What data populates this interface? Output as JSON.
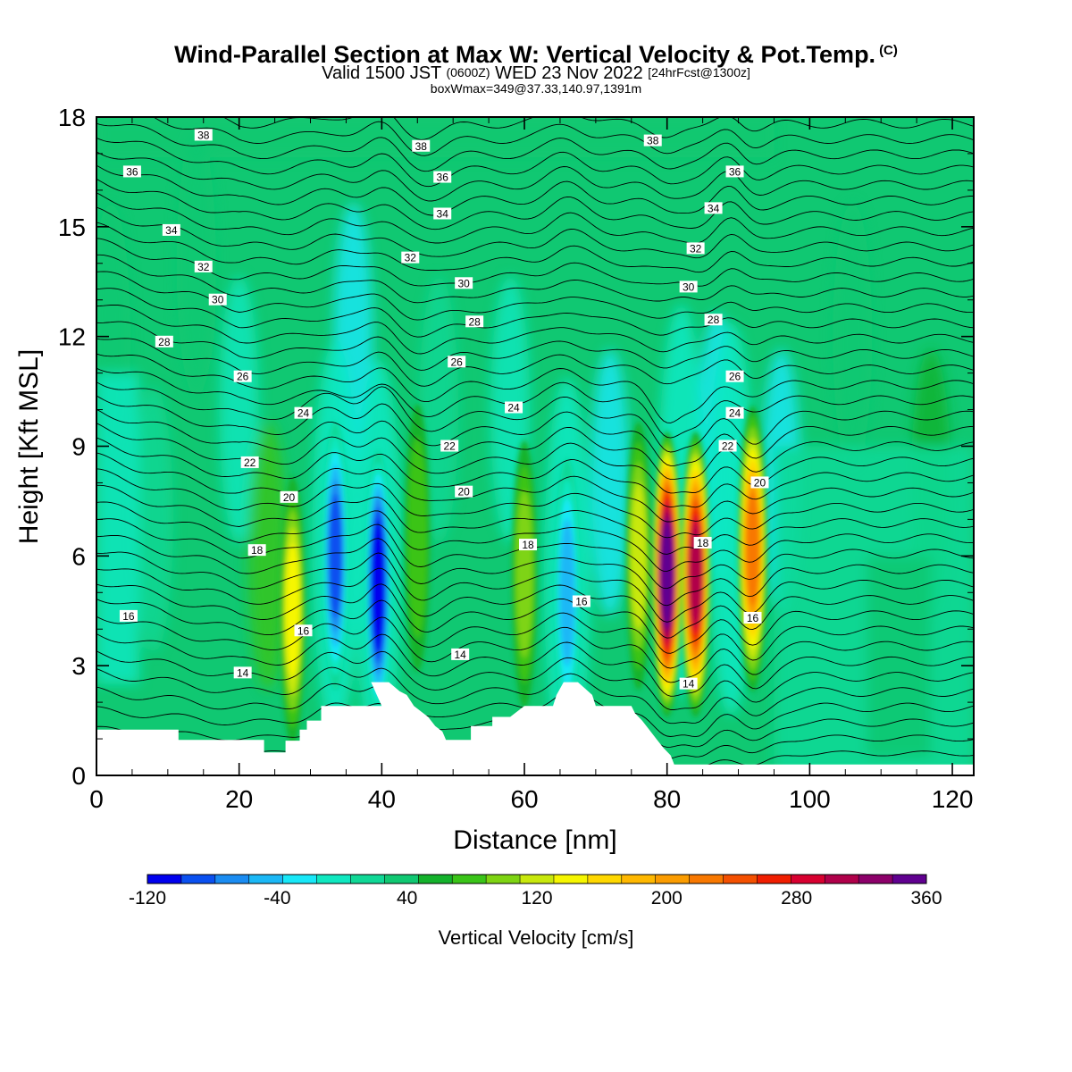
{
  "header": {
    "title": "Wind-Parallel Section at Max W: Vertical Velocity & Pot.Temp.",
    "copyright": "(C)",
    "valid_prefix": "Valid 1500 JST",
    "valid_utc": "(0600Z)",
    "valid_date": "WED 23 Nov 2022",
    "forecast": "[24hrFcst@1300z]",
    "box_info": "boxWmax=349@37.33,140.97,1391m"
  },
  "chart_data": {
    "type": "heatmap",
    "title": "Wind-Parallel Section at Max W: Vertical Velocity & Pot.Temp.",
    "xlabel": "Distance [nm]",
    "ylabel": "Height [Kft MSL]",
    "xlim": [
      0,
      123
    ],
    "ylim": [
      0,
      18
    ],
    "x_ticks": [
      0,
      20,
      40,
      60,
      80,
      100,
      120
    ],
    "y_ticks": [
      0,
      3,
      6,
      9,
      12,
      15,
      18
    ],
    "colorbar": {
      "title": "Vertical Velocity [cm/s]",
      "min": -120,
      "max": 360,
      "step": 20,
      "labels": [
        -120,
        -40,
        40,
        120,
        200,
        280,
        360
      ],
      "colors": [
        "#0000ee",
        "#0a50f0",
        "#1a8cf2",
        "#1bb8f6",
        "#18e8f8",
        "#10e8c0",
        "#10d896",
        "#10c872",
        "#14b22c",
        "#3ac418",
        "#7ed412",
        "#c8e80c",
        "#f6f600",
        "#ffd800",
        "#ffb800",
        "#fb9c00",
        "#f87800",
        "#f45000",
        "#f01e00",
        "#d80030",
        "#b0004a",
        "#8c006a",
        "#600090"
      ]
    },
    "terrain_profile_kft": [
      [
        0,
        1.25
      ],
      [
        11.5,
        1.25
      ],
      [
        11.5,
        0.97
      ],
      [
        23.5,
        0.97
      ],
      [
        23.5,
        0.63
      ],
      [
        26.5,
        0.63
      ],
      [
        26.5,
        0.95
      ],
      [
        28.5,
        0.95
      ],
      [
        28.5,
        1.25
      ],
      [
        29.5,
        1.25
      ],
      [
        29.5,
        1.5
      ],
      [
        31.5,
        1.5
      ],
      [
        31.5,
        1.9
      ],
      [
        40,
        1.9
      ],
      [
        38.5,
        2.55
      ],
      [
        41,
        2.55
      ],
      [
        42.5,
        2.3
      ],
      [
        43.5,
        2.2
      ],
      [
        44.5,
        1.9
      ],
      [
        46.5,
        1.6
      ],
      [
        47.5,
        1.35
      ],
      [
        48.5,
        1.2
      ],
      [
        49,
        0.97
      ],
      [
        52.5,
        0.97
      ],
      [
        52.5,
        1.35
      ],
      [
        55.5,
        1.35
      ],
      [
        55.5,
        1.6
      ],
      [
        58,
        1.6
      ],
      [
        60,
        1.9
      ],
      [
        64,
        1.9
      ],
      [
        64.5,
        2.2
      ],
      [
        65.5,
        2.55
      ],
      [
        67.5,
        2.55
      ],
      [
        69.5,
        2.2
      ],
      [
        70,
        1.9
      ],
      [
        75,
        1.9
      ],
      [
        75.5,
        1.7
      ],
      [
        76.5,
        1.5
      ],
      [
        77.5,
        1.25
      ],
      [
        78.5,
        1.0
      ],
      [
        79.5,
        0.75
      ],
      [
        80.5,
        0.55
      ],
      [
        81,
        0.3
      ],
      [
        123,
        0.3
      ]
    ],
    "theta_contours_c": [
      14,
      16,
      18,
      20,
      22,
      24,
      26,
      28,
      30,
      32,
      34,
      36,
      38
    ],
    "theta_contour_labels": [
      {
        "v": "38",
        "x": 15,
        "y": 17.5
      },
      {
        "v": "38",
        "x": 45.5,
        "y": 17.2
      },
      {
        "v": "38",
        "x": 78,
        "y": 17.35
      },
      {
        "v": "36",
        "x": 5,
        "y": 16.5
      },
      {
        "v": "36",
        "x": 48.5,
        "y": 16.35
      },
      {
        "v": "36",
        "x": 89.5,
        "y": 16.5
      },
      {
        "v": "34",
        "x": 10.5,
        "y": 14.9
      },
      {
        "v": "34",
        "x": 48.5,
        "y": 15.35
      },
      {
        "v": "34",
        "x": 86.5,
        "y": 15.5
      },
      {
        "v": "32",
        "x": 15,
        "y": 13.9
      },
      {
        "v": "32",
        "x": 44,
        "y": 14.15
      },
      {
        "v": "32",
        "x": 84,
        "y": 14.4
      },
      {
        "v": "30",
        "x": 17,
        "y": 13.0
      },
      {
        "v": "30",
        "x": 51.5,
        "y": 13.45
      },
      {
        "v": "30",
        "x": 83,
        "y": 13.35
      },
      {
        "v": "28",
        "x": 9.5,
        "y": 11.85
      },
      {
        "v": "28",
        "x": 53,
        "y": 12.4
      },
      {
        "v": "28",
        "x": 86.5,
        "y": 12.45
      },
      {
        "v": "26",
        "x": 20.5,
        "y": 10.9
      },
      {
        "v": "26",
        "x": 50.5,
        "y": 11.3
      },
      {
        "v": "26",
        "x": 89.5,
        "y": 10.9
      },
      {
        "v": "24",
        "x": 29,
        "y": 9.9
      },
      {
        "v": "24",
        "x": 58.5,
        "y": 10.05
      },
      {
        "v": "24",
        "x": 89.5,
        "y": 9.9
      },
      {
        "v": "22",
        "x": 21.5,
        "y": 8.55
      },
      {
        "v": "22",
        "x": 49.5,
        "y": 9.0
      },
      {
        "v": "22",
        "x": 88.5,
        "y": 9.0
      },
      {
        "v": "20",
        "x": 27,
        "y": 7.6
      },
      {
        "v": "20",
        "x": 51.5,
        "y": 7.75
      },
      {
        "v": "20",
        "x": 93,
        "y": 8.0
      },
      {
        "v": "18",
        "x": 22.5,
        "y": 6.15
      },
      {
        "v": "18",
        "x": 60.5,
        "y": 6.3
      },
      {
        "v": "18",
        "x": 85,
        "y": 6.35
      },
      {
        "v": "16",
        "x": 4.5,
        "y": 4.35
      },
      {
        "v": "16",
        "x": 29,
        "y": 3.95
      },
      {
        "v": "16",
        "x": 68,
        "y": 4.75
      },
      {
        "v": "16",
        "x": 92,
        "y": 4.3
      },
      {
        "v": "14",
        "x": 20.5,
        "y": 2.8
      },
      {
        "v": "14",
        "x": 51,
        "y": 3.3
      },
      {
        "v": "14",
        "x": 83,
        "y": 2.5
      }
    ],
    "velocity_features_cm_s": [
      {
        "x": 33.5,
        "y": 6.0,
        "value": -100
      },
      {
        "x": 39.5,
        "y": 5.2,
        "value": -130
      },
      {
        "x": 27.5,
        "y": 4.5,
        "value": 110
      },
      {
        "x": 45,
        "y": 6.5,
        "value": 60
      },
      {
        "x": 66,
        "y": 5.0,
        "value": -60
      },
      {
        "x": 60,
        "y": 5.5,
        "value": 80
      },
      {
        "x": 80,
        "y": 5.5,
        "value": 349
      },
      {
        "x": 84,
        "y": 5.5,
        "value": 280
      },
      {
        "x": 92,
        "y": 6.2,
        "value": 200
      },
      {
        "x": 76,
        "y": 6.0,
        "value": 100
      }
    ]
  }
}
